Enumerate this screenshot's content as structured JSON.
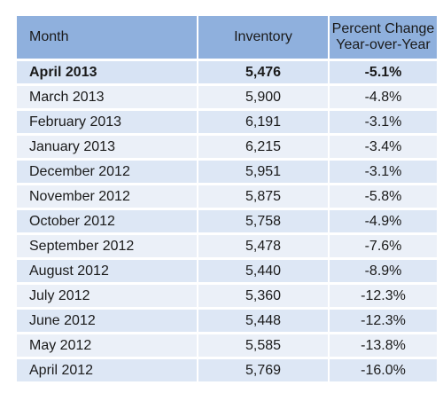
{
  "table": {
    "headers": {
      "month": "Month",
      "inventory": "Inventory",
      "change_line1": "Percent Change",
      "change_line2": "Year-over-Year"
    },
    "rows": [
      {
        "month": "April 2013",
        "inventory": "5,476",
        "change": "-5.1%",
        "highlighted": true
      },
      {
        "month": "March 2013",
        "inventory": "5,900",
        "change": "-4.8%"
      },
      {
        "month": "February 2013",
        "inventory": "6,191",
        "change": "-3.1%"
      },
      {
        "month": "January 2013",
        "inventory": "6,215",
        "change": "-3.4%"
      },
      {
        "month": "December 2012",
        "inventory": "5,951",
        "change": "-3.1%"
      },
      {
        "month": "November 2012",
        "inventory": "5,875",
        "change": "-5.8%"
      },
      {
        "month": "October 2012",
        "inventory": "5,758",
        "change": "-4.9%"
      },
      {
        "month": "September 2012",
        "inventory": "5,478",
        "change": "-7.6%"
      },
      {
        "month": "August 2012",
        "inventory": "5,440",
        "change": "-8.9%"
      },
      {
        "month": "July 2012",
        "inventory": "5,360",
        "change": "-12.3%"
      },
      {
        "month": "June 2012",
        "inventory": "5,448",
        "change": "-12.3%"
      },
      {
        "month": "May 2012",
        "inventory": "5,585",
        "change": "-13.8%"
      },
      {
        "month": "April 2012",
        "inventory": "5,769",
        "change": "-16.0%"
      }
    ],
    "colors": {
      "header_bg": "#8fb0dd",
      "row_bg": "#dde7f5",
      "row_alt_bg": "#ebf0f8",
      "highlight_bg": "#d7e3f4"
    }
  }
}
